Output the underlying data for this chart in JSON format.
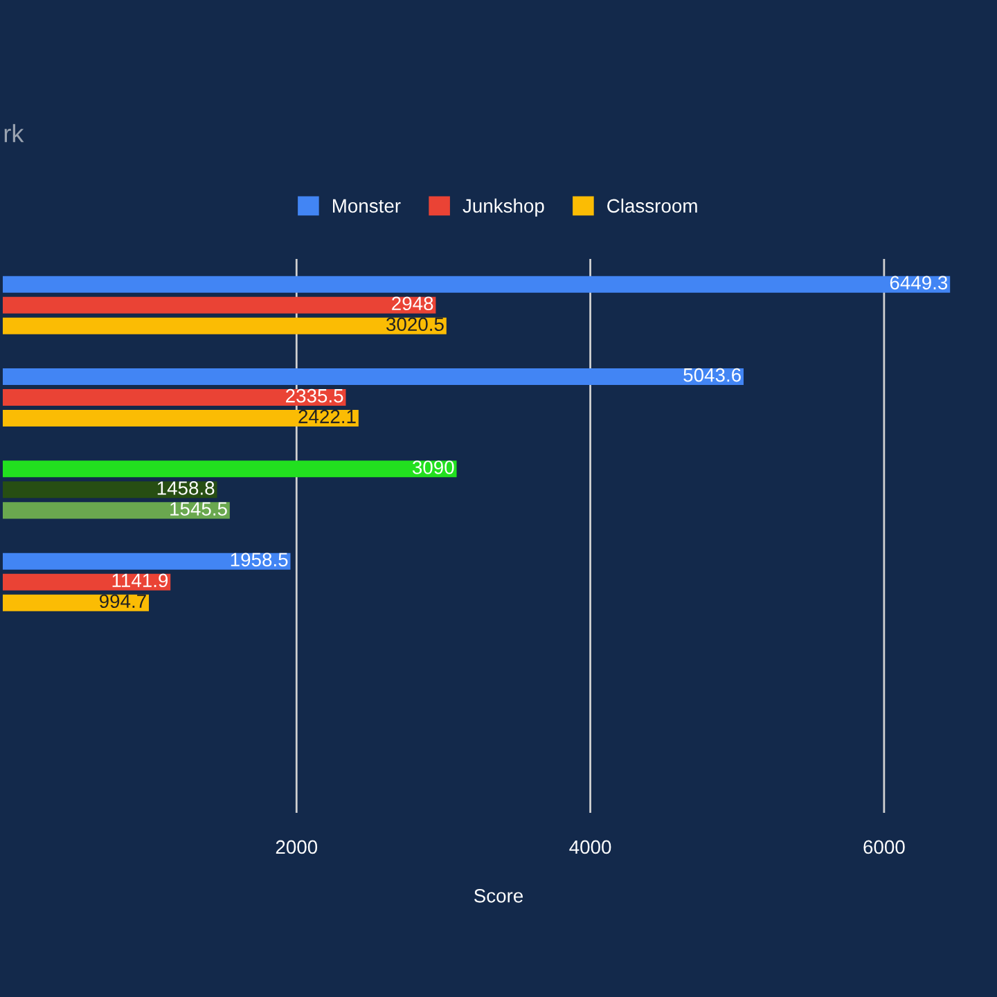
{
  "chart_data": {
    "type": "bar",
    "orientation": "horizontal",
    "title": "rk",
    "xlabel": "Score",
    "categories": [
      null,
      null,
      null,
      null,
      null,
      null
    ],
    "series": [
      {
        "name": "Monster",
        "color": "#4285f4",
        "colors": [
          "#4285f4",
          "#4285f4",
          "#22e01f",
          "#4285f4",
          "#4285f4",
          "#4285f4"
        ],
        "values": [
          6449.3,
          5043.6,
          3090,
          1958.5,
          null,
          null
        ]
      },
      {
        "name": "Junkshop",
        "color": "#ea4335",
        "colors": [
          "#ea4335",
          "#ea4335",
          "#274e13",
          "#ea4335",
          "#ea4335",
          "#ea4335"
        ],
        "values": [
          2948,
          2335.5,
          1458.8,
          1141.9,
          null,
          null
        ]
      },
      {
        "name": "Classroom",
        "color": "#fbbc04",
        "colors": [
          "#fbbc04",
          "#fbbc04",
          "#6aa84f",
          "#fbbc04",
          "#fbbc04",
          "#fbbc04"
        ],
        "values": [
          3020.5,
          2422.1,
          1545.5,
          994.7,
          null,
          null
        ]
      }
    ],
    "xlim": [
      0,
      6750
    ],
    "xticks": [
      2000,
      4000,
      6000
    ],
    "grid": "x",
    "legend": "top",
    "data_labels": true,
    "tick_labels": "x"
  }
}
